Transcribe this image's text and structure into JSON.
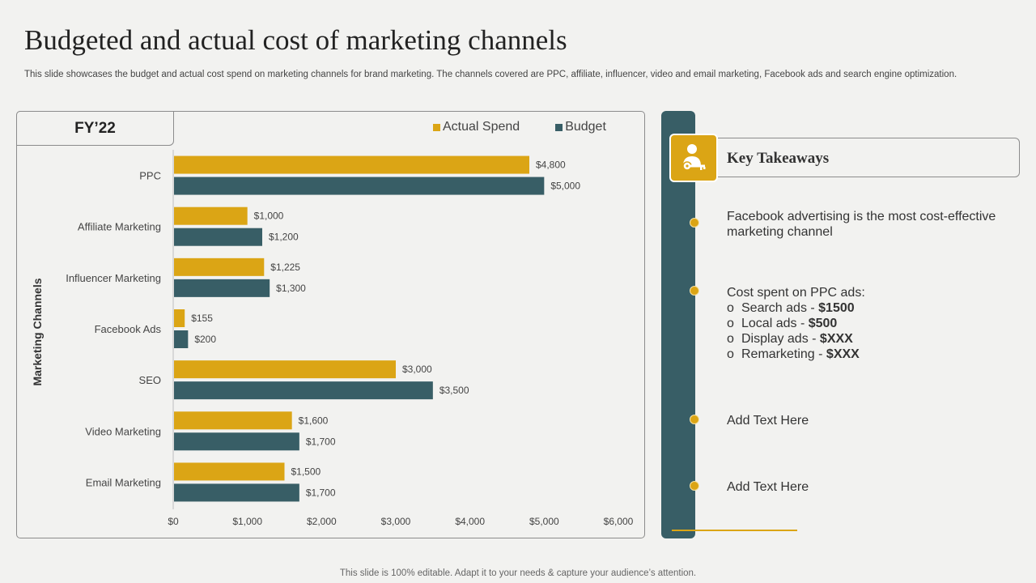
{
  "title": "Budgeted and actual cost of marketing channels",
  "subtitle": "This slide showcases the budget and actual cost spend on marketing channels for brand marketing. The channels covered are PPC, affiliate, influencer, video and email marketing, Facebook ads and search engine optimization.",
  "fy_label": "FY’22",
  "colors": {
    "actual": "#dba515",
    "budget": "#385e66"
  },
  "chart_data": {
    "type": "bar",
    "orientation": "horizontal",
    "categories": [
      "PPC",
      "Affiliate Marketing",
      "Influencer Marketing",
      "Facebook Ads",
      "SEO",
      "Video Marketing",
      "Email Marketing"
    ],
    "series": [
      {
        "name": "Actual Spend",
        "values": [
          4800,
          1000,
          1225,
          155,
          3000,
          1600,
          1500
        ],
        "labels": [
          "$4,800",
          "$1,000",
          "$1,225",
          "$155",
          "$3,000",
          "$1,600",
          "$1,500"
        ]
      },
      {
        "name": "Budget",
        "values": [
          5000,
          1200,
          1300,
          200,
          3500,
          1700,
          1700
        ],
        "labels": [
          "$5,000",
          "$1,200",
          "$1,300",
          "$200",
          "$3,500",
          "$1,700",
          "$1,700"
        ]
      }
    ],
    "xlim": [
      0,
      6000
    ],
    "xticks": [
      "$0",
      "$1,000",
      "$2,000",
      "$3,000",
      "$4,000",
      "$5,000",
      "$6,000"
    ],
    "ylabel": "Marketing Channels",
    "legend_position": "top-right"
  },
  "key_takeaways": {
    "heading": "Key Takeaways",
    "icon": "person-key-icon",
    "item1": "Facebook advertising is the most cost-effective marketing channel",
    "item2_heading": "Cost spent on PPC ads:",
    "item2_sub": [
      {
        "label": "Search ads - ",
        "value": "$1500"
      },
      {
        "label": "Local ads - ",
        "value": "$500"
      },
      {
        "label": "Display ads - ",
        "value": "$XXX"
      },
      {
        "label": "Remarketing - ",
        "value": "$XXX"
      }
    ],
    "bullet_marker": "o",
    "item3": "Add Text Here",
    "item4": "Add Text Here"
  },
  "footer": "This slide is 100% editable. Adapt it to your needs & capture your audience’s attention."
}
